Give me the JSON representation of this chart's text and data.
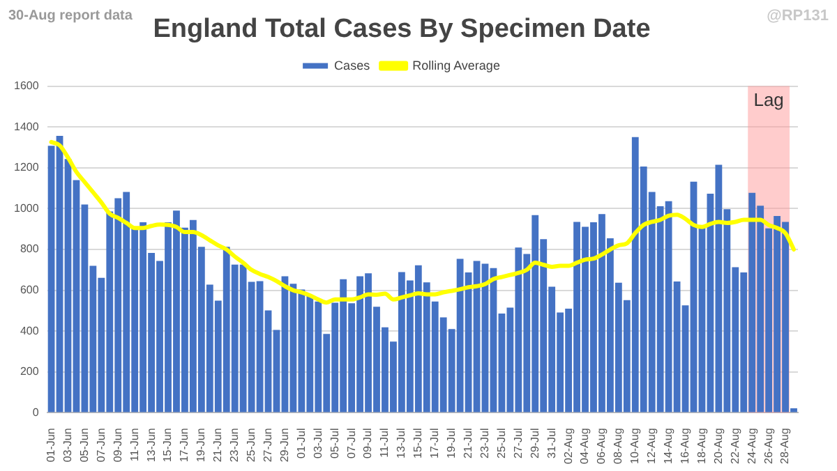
{
  "chart_data": {
    "type": "bar",
    "title": "England Total Cases By Specimen Date",
    "annotations": [
      "30-Aug report data",
      "@RP131"
    ],
    "categories": [
      "01-Jun",
      null,
      "03-Jun",
      null,
      "05-Jun",
      null,
      "07-Jun",
      null,
      "09-Jun",
      null,
      "11-Jun",
      null,
      "13-Jun",
      null,
      "15-Jun",
      null,
      "17-Jun",
      null,
      "19-Jun",
      null,
      "21-Jun",
      null,
      "23-Jun",
      null,
      "25-Jun",
      null,
      "27-Jun",
      null,
      "29-Jun",
      null,
      "01-Jul",
      null,
      "03-Jul",
      null,
      "05-Jul",
      null,
      "07-Jul",
      null,
      "09-Jul",
      null,
      "11-Jul",
      null,
      "13-Jul",
      null,
      "15-Jul",
      null,
      "17-Jul",
      null,
      "19-Jul",
      null,
      "21-Jul",
      null,
      "23-Jul",
      null,
      "25-Jul",
      null,
      "27-Jul",
      null,
      "29-Jul",
      null,
      "31-Jul",
      null,
      "02-Aug",
      null,
      "04-Aug",
      null,
      "06-Aug",
      null,
      "08-Aug",
      null,
      "10-Aug",
      null,
      "12-Aug",
      null,
      "14-Aug",
      null,
      "16-Aug",
      null,
      "18-Aug",
      null,
      "20-Aug",
      null,
      "22-Aug",
      null,
      "24-Aug",
      null,
      "26-Aug",
      null,
      "28-Aug",
      null
    ],
    "series": [
      {
        "name": "Cases",
        "color": "#4472c4",
        "values": [
          1308,
          1356,
          1243,
          1140,
          1020,
          720,
          661,
          986,
          1051,
          1082,
          911,
          933,
          783,
          744,
          933,
          990,
          907,
          944,
          813,
          628,
          549,
          813,
          726,
          726,
          641,
          645,
          501,
          406,
          669,
          632,
          604,
          571,
          545,
          386,
          539,
          654,
          536,
          669,
          683,
          519,
          419,
          349,
          689,
          648,
          722,
          639,
          545,
          467,
          410,
          754,
          687,
          744,
          730,
          709,
          486,
          515,
          809,
          778,
          968,
          850,
          617,
          491,
          510,
          935,
          911,
          933,
          973,
          855,
          637,
          552,
          1350,
          1206,
          1082,
          1012,
          1036,
          643,
          526,
          1132,
          909,
          1073,
          1215,
          997,
          713,
          687,
          1077,
          1014,
          903,
          964,
          935,
          22
        ]
      },
      {
        "name": "Rolling Average",
        "type": "line",
        "color": "#ffff00",
        "values": [
          1326,
          1310,
          1250,
          1180,
          1130,
          1080,
          1030,
          975,
          955,
          930,
          905,
          905,
          915,
          922,
          920,
          910,
          885,
          885,
          870,
          845,
          820,
          800,
          765,
          735,
          700,
          680,
          665,
          645,
          620,
          600,
          590,
          575,
          555,
          540,
          555,
          555,
          555,
          565,
          580,
          578,
          583,
          555,
          565,
          575,
          585,
          580,
          580,
          590,
          597,
          605,
          615,
          620,
          630,
          655,
          665,
          675,
          685,
          700,
          735,
          725,
          715,
          720,
          720,
          735,
          750,
          755,
          775,
          800,
          820,
          830,
          880,
          920,
          935,
          945,
          965,
          970,
          950,
          920,
          910,
          925,
          935,
          930,
          935,
          945,
          945,
          945,
          920,
          905,
          880,
          800
        ]
      }
    ],
    "ylim": [
      0,
      1600
    ],
    "yticks": [
      0,
      200,
      400,
      600,
      800,
      1000,
      1200,
      1400,
      1600
    ],
    "grid": "y",
    "legend": "top",
    "marker": "none",
    "line_style": "solid",
    "bands": [
      {
        "axis": "x",
        "from": "24-Aug",
        "to": "28-Aug",
        "label": "Lag",
        "color": "#ff9999"
      }
    ]
  }
}
